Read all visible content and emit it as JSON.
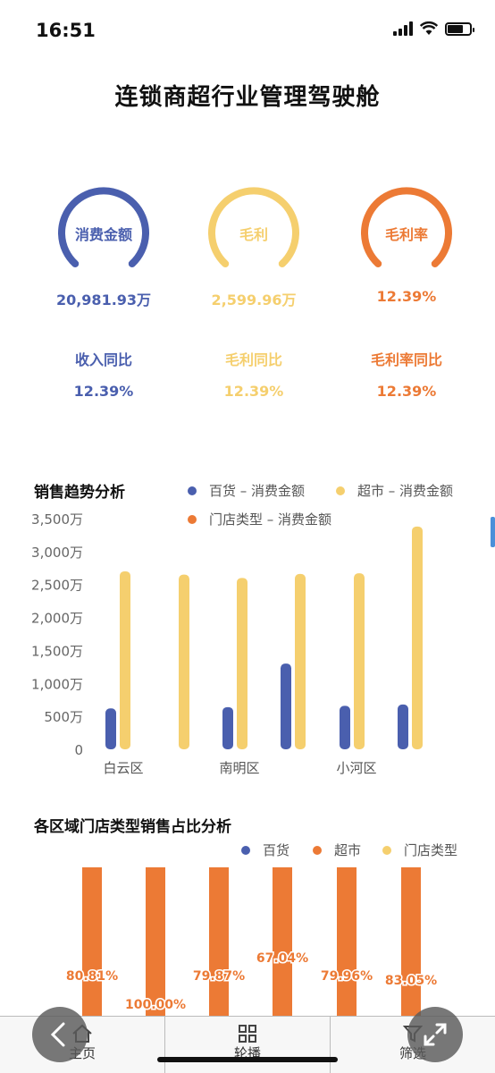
{
  "status_bar": {
    "time": "16:51"
  },
  "page_title": "连锁商超行业管理驾驶舱",
  "kpis": [
    {
      "label": "消费金额",
      "value": "20,981.93万",
      "sub_label": "收入同比",
      "sub_value": "12.39%",
      "color": "#4a5fae"
    },
    {
      "label": "毛利",
      "value": "2,599.96万",
      "sub_label": "毛利同比",
      "sub_value": "12.39%",
      "color": "#f5cf6e"
    },
    {
      "label": "毛利率",
      "value": "12.39%",
      "sub_label": "毛利率同比",
      "sub_value": "12.39%",
      "color": "#ec7a35"
    }
  ],
  "sales_trend": {
    "title": "销售趋势分析",
    "legend": [
      "百货 – 消费金额",
      "超市 – 消费金额",
      "门店类型 – 消费金额"
    ],
    "colors": [
      "#4a5fae",
      "#f5cf6e",
      "#ec7a35"
    ],
    "y_ticks": [
      "3,500万",
      "3,000万",
      "2,500万",
      "2,000万",
      "1,500万",
      "1,000万",
      "500万",
      "0"
    ],
    "x_labels": [
      "白云区",
      "南明区",
      "小河区"
    ]
  },
  "region_share": {
    "title": "各区域门店类型销售占比分析",
    "legend": [
      "百货",
      "超市",
      "门店类型"
    ],
    "colors": [
      "#4a5fae",
      "#ec7a35",
      "#f5cf6e"
    ],
    "labels": [
      "80.81%",
      "100.00%",
      "79.87%",
      "67.04%",
      "79.96%",
      "83.05%"
    ]
  },
  "chart_data": [
    {
      "type": "bar",
      "title": "销售趋势分析",
      "categories": [
        "白云区",
        "",
        "南明区",
        "",
        "小河区",
        ""
      ],
      "series": [
        {
          "name": "百货 – 消费金额",
          "values": [
            620,
            0,
            640,
            1300,
            660,
            680
          ]
        },
        {
          "name": "超市 – 消费金额",
          "values": [
            2700,
            2650,
            2600,
            2660,
            2670,
            3380
          ]
        },
        {
          "name": "门店类型 – 消费金额",
          "values": [
            0,
            0,
            0,
            0,
            0,
            0
          ]
        }
      ],
      "ylim": [
        0,
        3500
      ],
      "y_unit": "万"
    },
    {
      "type": "bar",
      "title": "各区域门店类型销售占比分析",
      "series": [
        {
          "name": "超市",
          "values": [
            80.81,
            100.0,
            79.87,
            67.04,
            79.96,
            83.05
          ]
        }
      ],
      "unit": "%"
    }
  ],
  "tabbar": {
    "items": [
      "主页",
      "轮播",
      "筛选"
    ]
  }
}
